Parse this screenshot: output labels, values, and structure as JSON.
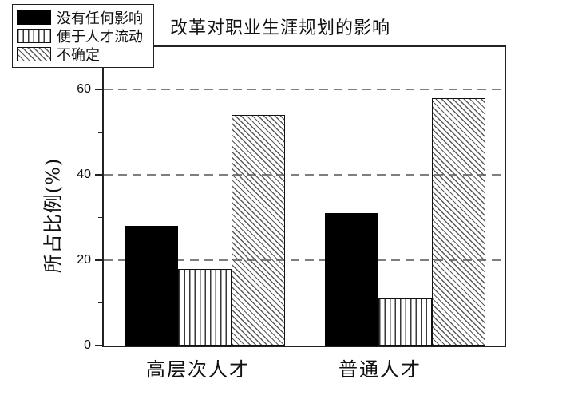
{
  "chart_data": {
    "type": "bar",
    "title": "改革对职业生涯规划的影响",
    "ylabel": "所占比例(%)",
    "xlabel": "",
    "categories": [
      "高层次人才",
      "普通人才"
    ],
    "series": [
      {
        "name": "没有任何影响",
        "pattern": "solid-black",
        "values": [
          28,
          31
        ]
      },
      {
        "name": "便于人才流动",
        "pattern": "vertical-stripes",
        "values": [
          18,
          11
        ]
      },
      {
        "name": "不确定",
        "pattern": "diagonal-hatch",
        "values": [
          54,
          58
        ]
      }
    ],
    "ylim": [
      0,
      70
    ],
    "yticks_major": [
      0,
      20,
      40,
      60
    ],
    "yticks_minor": [
      10,
      30,
      50
    ],
    "gridlines": {
      "values": [
        20,
        40,
        60
      ],
      "style": "dashed",
      "on": true,
      "color": "#7e7e7e"
    },
    "legend_position": "top-left",
    "colors": {
      "background": "#ffffff",
      "frame": "#222222",
      "bar_fill": "#000000",
      "bar_border": "#111111",
      "grid": "#7e7e7e",
      "text": "#111111"
    }
  }
}
